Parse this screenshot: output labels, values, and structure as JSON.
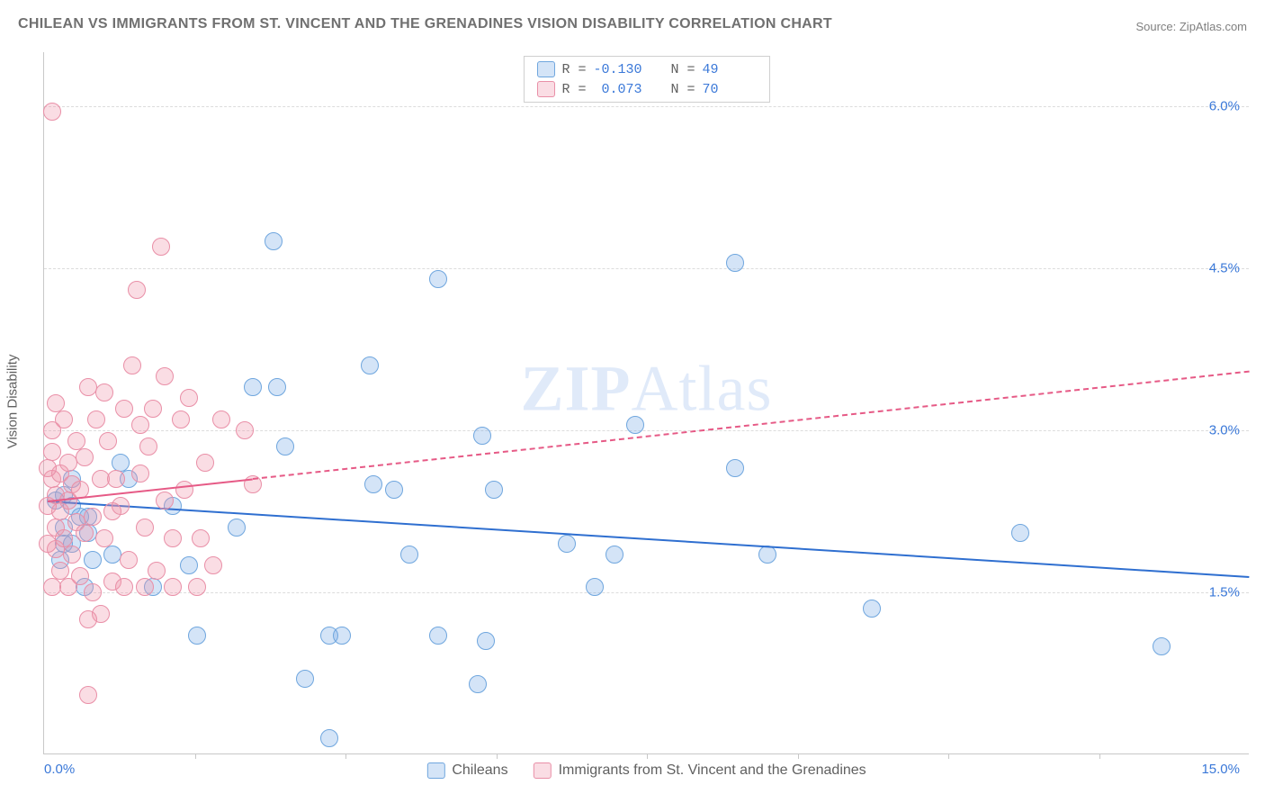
{
  "title": "CHILEAN VS IMMIGRANTS FROM ST. VINCENT AND THE GRENADINES VISION DISABILITY CORRELATION CHART",
  "source": "Source: ZipAtlas.com",
  "watermark": {
    "bold": "ZIP",
    "rest": "Atlas"
  },
  "chart": {
    "type": "scatter",
    "ylabel": "Vision Disability",
    "xlim": [
      0.0,
      15.0
    ],
    "ylim": [
      0.0,
      6.5
    ],
    "ygrid": [
      1.5,
      3.0,
      4.5,
      6.0
    ],
    "ytick_labels": [
      "1.5%",
      "3.0%",
      "4.5%",
      "6.0%"
    ],
    "xticks": [
      1.875,
      3.75,
      5.625,
      7.5,
      9.375,
      11.25,
      13.125
    ],
    "xmin_label": "0.0%",
    "xmax_label": "15.0%",
    "background_color": "#ffffff",
    "grid_color": "#dcdcdc",
    "axis_color": "#c8c8c8",
    "point_radius": 10,
    "series": [
      {
        "name": "Chileans",
        "fill": "rgba(120,170,230,0.32)",
        "stroke": "#6fa6de",
        "reg_color": "#2f6fd0",
        "reg_width": 2.4,
        "dash_after_x": 999,
        "reg": {
          "x1": 0.05,
          "y1": 2.35,
          "x2": 15.0,
          "y2": 1.65
        },
        "R": "-0.130",
        "N": "49",
        "points": [
          [
            0.25,
            2.4
          ],
          [
            0.25,
            2.1
          ],
          [
            0.25,
            1.95
          ],
          [
            0.35,
            2.3
          ],
          [
            0.45,
            2.2
          ],
          [
            0.35,
            1.95
          ],
          [
            0.6,
            1.8
          ],
          [
            0.95,
            2.7
          ],
          [
            1.6,
            2.3
          ],
          [
            1.05,
            2.55
          ],
          [
            0.5,
            1.55
          ],
          [
            1.9,
            1.1
          ],
          [
            2.6,
            3.4
          ],
          [
            2.85,
            4.75
          ],
          [
            2.9,
            3.4
          ],
          [
            3.25,
            0.7
          ],
          [
            3.0,
            2.85
          ],
          [
            3.55,
            0.15
          ],
          [
            3.55,
            1.1
          ],
          [
            3.7,
            1.1
          ],
          [
            4.1,
            2.5
          ],
          [
            4.05,
            3.6
          ],
          [
            4.35,
            2.45
          ],
          [
            4.9,
            4.4
          ],
          [
            4.55,
            1.85
          ],
          [
            4.9,
            1.1
          ],
          [
            5.5,
            1.05
          ],
          [
            5.4,
            0.65
          ],
          [
            5.6,
            2.45
          ],
          [
            5.45,
            2.95
          ],
          [
            6.5,
            1.95
          ],
          [
            7.1,
            1.85
          ],
          [
            7.35,
            3.05
          ],
          [
            6.85,
            1.55
          ],
          [
            8.6,
            2.65
          ],
          [
            8.6,
            4.55
          ],
          [
            9.0,
            1.85
          ],
          [
            10.3,
            1.35
          ],
          [
            12.15,
            2.05
          ],
          [
            13.9,
            1.0
          ],
          [
            0.15,
            2.35
          ],
          [
            0.55,
            2.2
          ],
          [
            0.85,
            1.85
          ],
          [
            1.35,
            1.55
          ],
          [
            2.4,
            2.1
          ],
          [
            1.8,
            1.75
          ],
          [
            0.35,
            2.55
          ],
          [
            0.55,
            2.05
          ],
          [
            0.2,
            1.8
          ]
        ]
      },
      {
        "name": "Immigrants from St. Vincent and the Grenadines",
        "fill": "rgba(240,150,170,0.32)",
        "stroke": "#e98fa7",
        "reg_color": "#e65a86",
        "reg_width": 2.2,
        "dash_after_x": 2.6,
        "reg": {
          "x1": 0.05,
          "y1": 2.35,
          "x2": 15.0,
          "y2": 3.55
        },
        "R": "0.073",
        "N": "70",
        "points": [
          [
            0.1,
            5.95
          ],
          [
            0.55,
            0.55
          ],
          [
            0.05,
            2.3
          ],
          [
            0.1,
            2.55
          ],
          [
            0.1,
            2.8
          ],
          [
            0.1,
            3.0
          ],
          [
            0.15,
            2.1
          ],
          [
            0.15,
            2.4
          ],
          [
            0.15,
            1.9
          ],
          [
            0.2,
            2.6
          ],
          [
            0.2,
            2.25
          ],
          [
            0.2,
            1.7
          ],
          [
            0.25,
            3.1
          ],
          [
            0.25,
            2.0
          ],
          [
            0.3,
            1.55
          ],
          [
            0.3,
            2.35
          ],
          [
            0.3,
            2.7
          ],
          [
            0.35,
            2.5
          ],
          [
            0.35,
            1.85
          ],
          [
            0.4,
            2.15
          ],
          [
            0.4,
            2.9
          ],
          [
            0.45,
            1.65
          ],
          [
            0.45,
            2.45
          ],
          [
            0.5,
            2.05
          ],
          [
            0.5,
            2.75
          ],
          [
            0.55,
            3.4
          ],
          [
            0.6,
            2.2
          ],
          [
            0.6,
            1.5
          ],
          [
            0.65,
            3.1
          ],
          [
            0.7,
            2.55
          ],
          [
            0.7,
            1.3
          ],
          [
            0.75,
            2.0
          ],
          [
            0.8,
            2.9
          ],
          [
            0.75,
            3.35
          ],
          [
            0.85,
            2.25
          ],
          [
            0.85,
            1.6
          ],
          [
            0.9,
            2.55
          ],
          [
            0.95,
            2.3
          ],
          [
            1.0,
            3.2
          ],
          [
            1.0,
            1.55
          ],
          [
            1.05,
            1.8
          ],
          [
            1.1,
            3.6
          ],
          [
            1.15,
            4.3
          ],
          [
            1.2,
            2.6
          ],
          [
            1.2,
            3.05
          ],
          [
            1.25,
            2.1
          ],
          [
            1.25,
            1.55
          ],
          [
            1.3,
            2.85
          ],
          [
            1.35,
            3.2
          ],
          [
            1.4,
            1.7
          ],
          [
            1.45,
            4.7
          ],
          [
            1.5,
            2.35
          ],
          [
            1.5,
            3.5
          ],
          [
            1.6,
            2.0
          ],
          [
            1.6,
            1.55
          ],
          [
            1.7,
            3.1
          ],
          [
            1.75,
            2.45
          ],
          [
            1.8,
            3.3
          ],
          [
            1.9,
            1.55
          ],
          [
            1.95,
            2.0
          ],
          [
            2.0,
            2.7
          ],
          [
            2.1,
            1.75
          ],
          [
            2.2,
            3.1
          ],
          [
            2.5,
            3.0
          ],
          [
            2.6,
            2.5
          ],
          [
            0.05,
            1.95
          ],
          [
            0.05,
            2.65
          ],
          [
            0.1,
            1.55
          ],
          [
            0.15,
            3.25
          ],
          [
            0.55,
            1.25
          ]
        ]
      }
    ],
    "stats_legend_labels": {
      "R": "R =",
      "N": "N ="
    },
    "label_fontsize": 15,
    "tick_color": "#3a78d8"
  }
}
